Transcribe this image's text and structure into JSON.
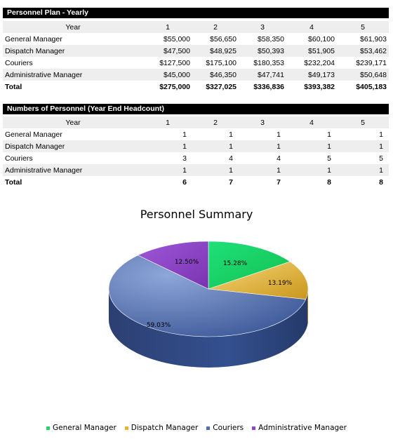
{
  "plan": {
    "title": "Personnel Plan - Yearly",
    "year_label": "Year",
    "years": [
      "1",
      "2",
      "3",
      "4",
      "5"
    ],
    "rows": [
      {
        "label": "General Manager",
        "values": [
          "$55,000",
          "$56,650",
          "$58,350",
          "$60,100",
          "$61,903"
        ]
      },
      {
        "label": "Dispatch Manager",
        "values": [
          "$47,500",
          "$48,925",
          "$50,393",
          "$51,905",
          "$53,462"
        ]
      },
      {
        "label": "Couriers",
        "values": [
          "$127,500",
          "$175,100",
          "$180,353",
          "$232,204",
          "$239,171"
        ]
      },
      {
        "label": "Administrative Manager",
        "values": [
          "$45,000",
          "$46,350",
          "$47,741",
          "$49,173",
          "$50,648"
        ]
      }
    ],
    "total": {
      "label": "Total",
      "values": [
        "$275,000",
        "$327,025",
        "$336,836",
        "$393,382",
        "$405,183"
      ]
    }
  },
  "headcount": {
    "title": "Numbers of Personnel (Year End Headcount)",
    "year_label": "Year",
    "years": [
      "1",
      "2",
      "3",
      "4",
      "5"
    ],
    "rows": [
      {
        "label": "General Manager",
        "values": [
          "1",
          "1",
          "1",
          "1",
          "1"
        ]
      },
      {
        "label": "Dispatch Manager",
        "values": [
          "1",
          "1",
          "1",
          "1",
          "1"
        ]
      },
      {
        "label": "Couriers",
        "values": [
          "3",
          "4",
          "4",
          "5",
          "5"
        ]
      },
      {
        "label": "Administrative Manager",
        "values": [
          "1",
          "1",
          "1",
          "1",
          "1"
        ]
      }
    ],
    "total": {
      "label": "Total",
      "values": [
        "6",
        "7",
        "7",
        "8",
        "8"
      ]
    }
  },
  "chart_data": {
    "type": "pie",
    "title": "Personnel Summary",
    "categories": [
      "General Manager",
      "Dispatch Manager",
      "Couriers",
      "Administrative Manager"
    ],
    "values": [
      15.28,
      13.19,
      59.03,
      12.5
    ],
    "labels": [
      "15.28%",
      "13.19%",
      "59.03%",
      "12.50%"
    ],
    "colors": [
      "#22d66a",
      "#e8b52a",
      "#4f6fb0",
      "#8c45c4"
    ],
    "legend": "bottom"
  }
}
